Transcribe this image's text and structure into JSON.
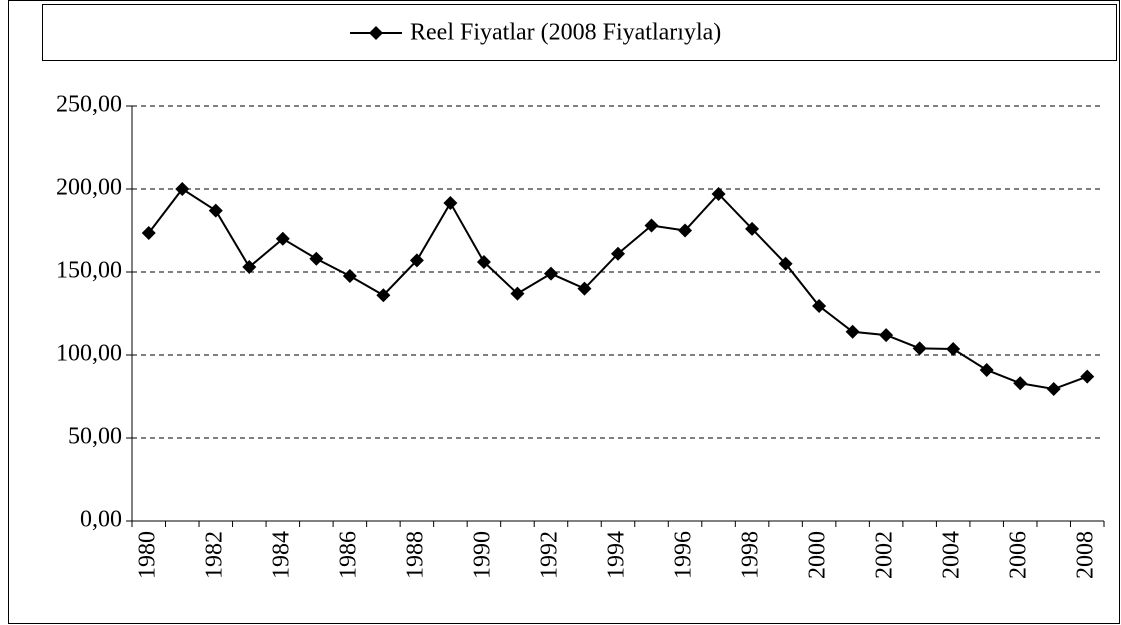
{
  "chart_data": {
    "type": "line",
    "categories": [
      "1980",
      null,
      "1982",
      null,
      "1984",
      null,
      "1986",
      null,
      "1988",
      null,
      "1990",
      null,
      "1992",
      null,
      "1994",
      null,
      "1996",
      null,
      "1998",
      null,
      "2000",
      null,
      "2002",
      null,
      "2004",
      null,
      "2006",
      null,
      "2008"
    ],
    "series": [
      {
        "name": "Reel Fiyatlar (2008 Fiyatlarıyla)",
        "color": "#000000",
        "values": [
          173.5,
          200,
          187,
          153,
          170,
          158,
          147.6,
          136,
          157,
          191.6,
          156,
          137,
          149,
          140,
          161,
          178,
          175,
          197,
          176,
          155,
          129.5,
          114,
          112,
          104,
          103.6,
          91,
          83,
          79.5,
          87
        ]
      }
    ],
    "ylim": [
      0,
      250
    ],
    "yticks": [
      {
        "value": 0,
        "label": "0,00"
      },
      {
        "value": 50,
        "label": "50,00"
      },
      {
        "value": 100,
        "label": "100,00"
      },
      {
        "value": 150,
        "label": "150,00"
      },
      {
        "value": 200,
        "label": "200,00"
      },
      {
        "value": 250,
        "label": "250,00"
      }
    ],
    "grid": true,
    "legend": "top"
  }
}
